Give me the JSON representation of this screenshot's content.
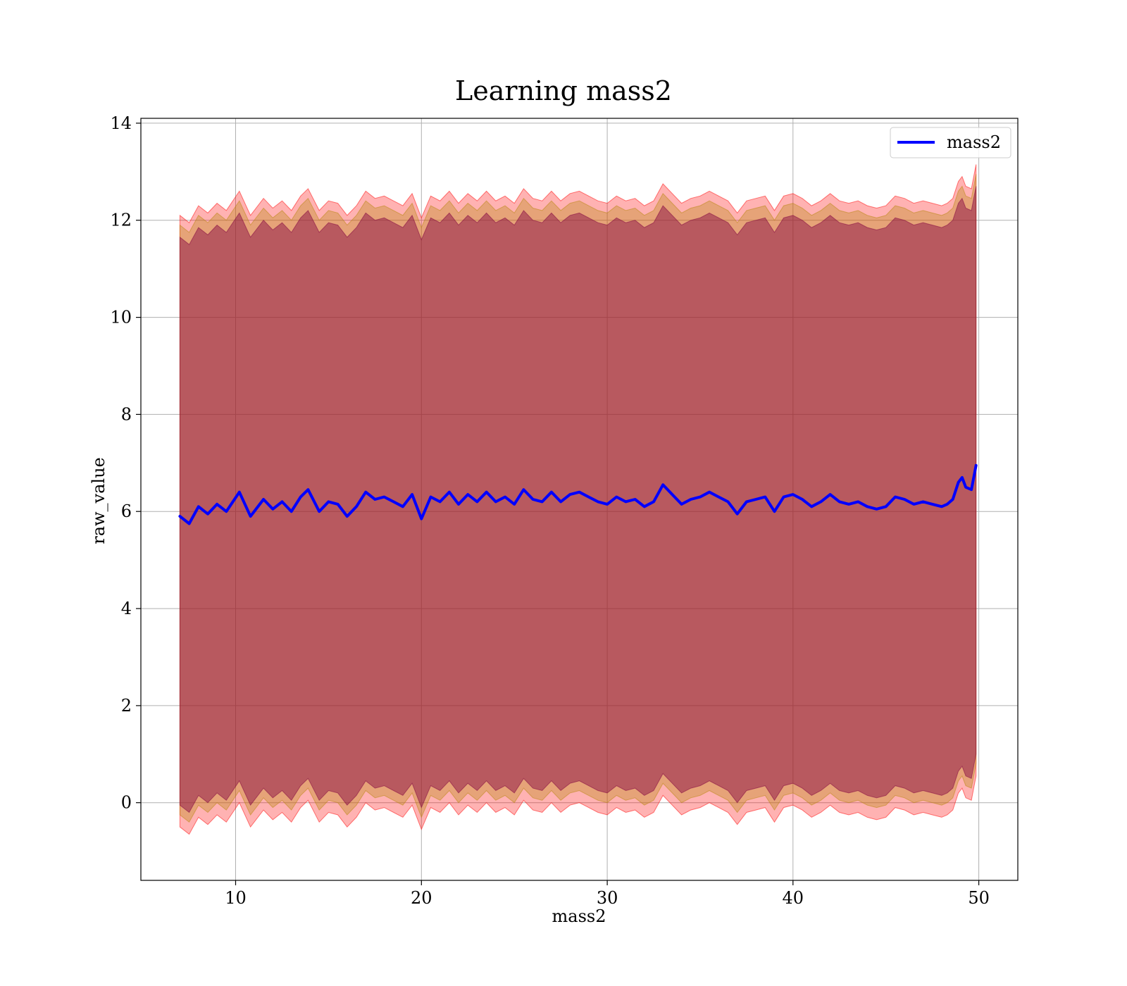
{
  "chart_data": {
    "type": "line",
    "title": "Learning mass2",
    "xlabel": "mass2",
    "ylabel": "raw_value",
    "xlim": [
      4.9,
      52.1
    ],
    "ylim": [
      -1.6,
      14.1
    ],
    "xticks": [
      10,
      20,
      30,
      40,
      50
    ],
    "yticks": [
      0,
      2,
      4,
      6,
      8,
      10,
      12,
      14
    ],
    "grid": true,
    "legend": {
      "position": "top-right",
      "entries": [
        "mass2"
      ]
    },
    "colors": {
      "line": "#0000ff",
      "band_outer": "#ff0000",
      "band_middle": "#b8860b",
      "band_inner": "#800040",
      "grid": "#b0b0b0",
      "axis": "#000000"
    },
    "series": [
      {
        "name": "mass2",
        "x": [
          7.0,
          7.5,
          8.0,
          8.5,
          9.0,
          9.5,
          10.2,
          10.8,
          11.5,
          12.0,
          12.5,
          13.0,
          13.5,
          13.9,
          14.5,
          15.0,
          15.5,
          16.0,
          16.5,
          17.0,
          17.5,
          18.0,
          18.5,
          19.0,
          19.5,
          20.0,
          20.5,
          21.0,
          21.5,
          22.0,
          22.5,
          23.0,
          23.5,
          24.0,
          24.5,
          25.0,
          25.5,
          26.0,
          26.5,
          27.0,
          27.5,
          28.0,
          28.5,
          29.0,
          29.5,
          30.0,
          30.5,
          31.0,
          31.5,
          32.0,
          32.5,
          33.0,
          33.5,
          34.0,
          34.5,
          35.0,
          35.5,
          36.0,
          36.5,
          37.0,
          37.5,
          38.0,
          38.5,
          39.0,
          39.5,
          40.0,
          40.5,
          41.0,
          41.5,
          42.0,
          42.5,
          43.0,
          43.5,
          44.0,
          44.5,
          45.0,
          45.5,
          46.0,
          46.5,
          47.0,
          47.5,
          48.0,
          48.3,
          48.6,
          48.9,
          49.1,
          49.3,
          49.6,
          49.85
        ],
        "y": [
          5.9,
          5.75,
          6.1,
          5.95,
          6.15,
          6.0,
          6.4,
          5.9,
          6.25,
          6.05,
          6.2,
          6.0,
          6.3,
          6.45,
          6.0,
          6.2,
          6.15,
          5.9,
          6.1,
          6.4,
          6.25,
          6.3,
          6.2,
          6.1,
          6.35,
          5.85,
          6.3,
          6.2,
          6.4,
          6.15,
          6.35,
          6.2,
          6.4,
          6.2,
          6.3,
          6.15,
          6.45,
          6.25,
          6.2,
          6.4,
          6.2,
          6.35,
          6.4,
          6.3,
          6.2,
          6.15,
          6.3,
          6.2,
          6.25,
          6.1,
          6.2,
          6.55,
          6.35,
          6.15,
          6.25,
          6.3,
          6.4,
          6.3,
          6.2,
          5.95,
          6.2,
          6.25,
          6.3,
          6.0,
          6.3,
          6.35,
          6.25,
          6.1,
          6.2,
          6.35,
          6.2,
          6.15,
          6.2,
          6.1,
          6.05,
          6.1,
          6.3,
          6.25,
          6.15,
          6.2,
          6.15,
          6.1,
          6.15,
          6.25,
          6.6,
          6.7,
          6.5,
          6.45,
          6.95
        ]
      }
    ],
    "bands": [
      {
        "name": "outer",
        "lower_offset": -6.4,
        "upper_offset": 6.2
      },
      {
        "name": "middle",
        "lower_offset": -6.15,
        "upper_offset": 6.0
      },
      {
        "name": "inner",
        "lower_offset": -5.95,
        "upper_offset": 5.75
      }
    ]
  }
}
